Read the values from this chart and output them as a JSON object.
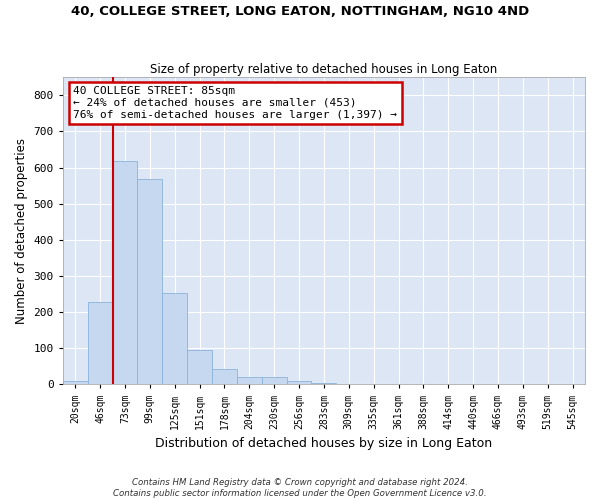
{
  "title": "40, COLLEGE STREET, LONG EATON, NOTTINGHAM, NG10 4ND",
  "subtitle": "Size of property relative to detached houses in Long Eaton",
  "xlabel": "Distribution of detached houses by size in Long Eaton",
  "ylabel": "Number of detached properties",
  "bar_color": "#c5d8f0",
  "bar_edge_color": "#8ab4d8",
  "background_color": "#dce6f5",
  "grid_color": "#ffffff",
  "bin_labels": [
    "20sqm",
    "46sqm",
    "73sqm",
    "99sqm",
    "125sqm",
    "151sqm",
    "178sqm",
    "204sqm",
    "230sqm",
    "256sqm",
    "283sqm",
    "309sqm",
    "335sqm",
    "361sqm",
    "388sqm",
    "414sqm",
    "440sqm",
    "466sqm",
    "493sqm",
    "519sqm",
    "545sqm"
  ],
  "bar_values": [
    10,
    228,
    618,
    568,
    252,
    96,
    42,
    20,
    20,
    10,
    5,
    0,
    0,
    0,
    0,
    0,
    0,
    0,
    0,
    0,
    0
  ],
  "ylim": [
    0,
    850
  ],
  "yticks": [
    0,
    100,
    200,
    300,
    400,
    500,
    600,
    700,
    800
  ],
  "line_bin_index": 2,
  "annotation_text": "40 COLLEGE STREET: 85sqm\n← 24% of detached houses are smaller (453)\n76% of semi-detached houses are larger (1,397) →",
  "annotation_box_color": "#ffffff",
  "annotation_box_edge_color": "#cc0000",
  "line_color": "#cc0000",
  "footer_line1": "Contains HM Land Registry data © Crown copyright and database right 2024.",
  "footer_line2": "Contains public sector information licensed under the Open Government Licence v3.0."
}
